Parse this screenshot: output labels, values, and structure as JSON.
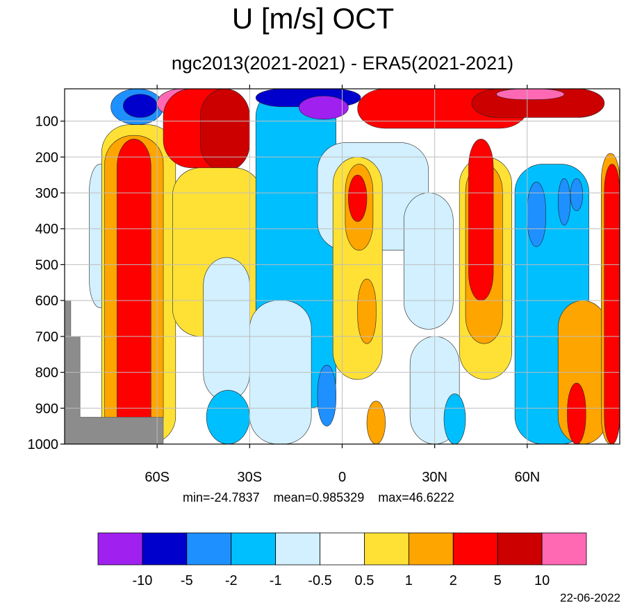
{
  "chart_data": {
    "type": "heatmap",
    "title": "U [m/s] OCT",
    "subtitle": "ngc2013(2021-2021) - ERA5(2021-2021)",
    "x_ticks": [
      "60S",
      "30S",
      "0",
      "30N",
      "60N"
    ],
    "x_tick_values": [
      -60,
      -30,
      0,
      30,
      60
    ],
    "xlim": [
      -90,
      90
    ],
    "y_ticks": [
      100,
      200,
      300,
      400,
      500,
      600,
      700,
      800,
      900,
      1000
    ],
    "ylim": [
      1000,
      10
    ],
    "y_reversed": true,
    "grid": true,
    "colorbar": {
      "levels": [
        "-10",
        "-5",
        "-2",
        "-1",
        "-0.5",
        "0.5",
        "1",
        "2",
        "5",
        "10"
      ],
      "colors": [
        "#a020f0",
        "#0000cd",
        "#1e90ff",
        "#00bfff",
        "#d2f0ff",
        "#ffffff",
        "#ffe135",
        "#ffa500",
        "#ff0000",
        "#cd0000",
        "#ff69b4"
      ]
    },
    "stats": {
      "min": "min=-24.7837",
      "mean": "mean=0.985329",
      "max": "max=46.6222"
    },
    "contour_regions": [
      {
        "cls": 4,
        "x": [
          -82,
          -75
        ],
        "p": [
          220,
          620
        ]
      },
      {
        "cls": 3,
        "x": [
          -78,
          -70
        ],
        "p": [
          150,
          900
        ]
      },
      {
        "cls": 2,
        "x": [
          -75,
          -68
        ],
        "p": [
          230,
          400
        ]
      },
      {
        "cls": 6,
        "x": [
          -78,
          -54
        ],
        "p": [
          110,
          1000
        ]
      },
      {
        "cls": 7,
        "x": [
          -77,
          -58
        ],
        "p": [
          140,
          1000
        ]
      },
      {
        "cls": 8,
        "x": [
          -73,
          -62
        ],
        "p": [
          150,
          1000
        ]
      },
      {
        "cls": 2,
        "x": [
          -75,
          -58
        ],
        "p": [
          10,
          110
        ]
      },
      {
        "cls": 1,
        "x": [
          -71,
          -60
        ],
        "p": [
          25,
          90
        ]
      },
      {
        "cls": 10,
        "x": [
          -60,
          -44
        ],
        "p": [
          10,
          90
        ]
      },
      {
        "cls": 8,
        "x": [
          -58,
          -30
        ],
        "p": [
          10,
          230
        ]
      },
      {
        "cls": 9,
        "x": [
          -46,
          -30
        ],
        "p": [
          10,
          240
        ]
      },
      {
        "cls": 7,
        "x": [
          -50,
          -30
        ],
        "p": [
          230,
          620
        ]
      },
      {
        "cls": 6,
        "x": [
          -55,
          -26
        ],
        "p": [
          230,
          700
        ]
      },
      {
        "cls": 3,
        "x": [
          -28,
          -2
        ],
        "p": [
          10,
          900
        ]
      },
      {
        "cls": 4,
        "x": [
          -45,
          -30
        ],
        "p": [
          480,
          880
        ]
      },
      {
        "cls": 3,
        "x": [
          -44,
          -30
        ],
        "p": [
          850,
          1000
        ]
      },
      {
        "cls": 4,
        "x": [
          -30,
          -10
        ],
        "p": [
          600,
          1000
        ]
      },
      {
        "cls": 2,
        "x": [
          -8,
          -2
        ],
        "p": [
          780,
          950
        ]
      },
      {
        "cls": 1,
        "x": [
          -28,
          6
        ],
        "p": [
          10,
          60
        ]
      },
      {
        "cls": 0,
        "x": [
          -14,
          2
        ],
        "p": [
          30,
          95
        ]
      },
      {
        "cls": 4,
        "x": [
          -8,
          28
        ],
        "p": [
          160,
          460
        ]
      },
      {
        "cls": 6,
        "x": [
          -3,
          13
        ],
        "p": [
          200,
          820
        ]
      },
      {
        "cls": 7,
        "x": [
          1,
          10
        ],
        "p": [
          220,
          460
        ]
      },
      {
        "cls": 8,
        "x": [
          2,
          8
        ],
        "p": [
          250,
          380
        ]
      },
      {
        "cls": 7,
        "x": [
          5,
          11
        ],
        "p": [
          540,
          720
        ]
      },
      {
        "cls": 7,
        "x": [
          8,
          14
        ],
        "p": [
          880,
          1000
        ]
      },
      {
        "cls": 4,
        "x": [
          20,
          36
        ],
        "p": [
          300,
          680
        ]
      },
      {
        "cls": 4,
        "x": [
          22,
          38
        ],
        "p": [
          700,
          1000
        ]
      },
      {
        "cls": 3,
        "x": [
          33,
          40
        ],
        "p": [
          860,
          1000
        ]
      },
      {
        "cls": 8,
        "x": [
          5,
          60
        ],
        "p": [
          10,
          120
        ]
      },
      {
        "cls": 9,
        "x": [
          42,
          85
        ],
        "p": [
          10,
          90
        ]
      },
      {
        "cls": 10,
        "x": [
          50,
          72
        ],
        "p": [
          10,
          40
        ]
      },
      {
        "cls": 6,
        "x": [
          38,
          55
        ],
        "p": [
          200,
          820
        ]
      },
      {
        "cls": 7,
        "x": [
          40,
          52
        ],
        "p": [
          220,
          720
        ]
      },
      {
        "cls": 8,
        "x": [
          41,
          49
        ],
        "p": [
          150,
          600
        ]
      },
      {
        "cls": 3,
        "x": [
          56,
          80
        ],
        "p": [
          220,
          1000
        ]
      },
      {
        "cls": 2,
        "x": [
          60,
          66
        ],
        "p": [
          270,
          450
        ]
      },
      {
        "cls": 2,
        "x": [
          70,
          74
        ],
        "p": [
          260,
          390
        ]
      },
      {
        "cls": 2,
        "x": [
          74,
          78
        ],
        "p": [
          260,
          350
        ]
      },
      {
        "cls": 7,
        "x": [
          70,
          86
        ],
        "p": [
          600,
          1000
        ]
      },
      {
        "cls": 8,
        "x": [
          73,
          79
        ],
        "p": [
          830,
          1000
        ]
      },
      {
        "cls": 7,
        "x": [
          84,
          90
        ],
        "p": [
          190,
          1000
        ]
      },
      {
        "cls": 8,
        "x": [
          85,
          90
        ],
        "p": [
          220,
          1000
        ]
      }
    ]
  }
}
